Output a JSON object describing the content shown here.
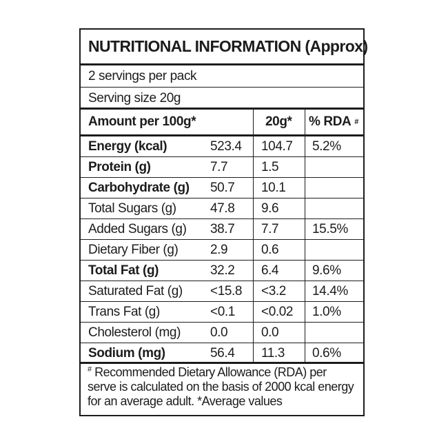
{
  "title": "NUTRITIONAL INFORMATION (Approx)",
  "servings_per_pack": "2 servings per pack",
  "serving_size": "Serving size 20g",
  "headers": {
    "amount_per_100g": "Amount per 100g*",
    "per_serving": "20g*",
    "rda": "% RDA",
    "rda_mark": "#"
  },
  "rows": [
    {
      "name": "Energy (kcal)",
      "per100": "523.4",
      "per20": "104.7",
      "rda": "5.2%"
    },
    {
      "name": "Protein (g)",
      "per100": "7.7",
      "per20": "1.5",
      "rda": ""
    },
    {
      "name": "Carbohydrate (g)",
      "per100": "50.7",
      "per20": "10.1",
      "rda": ""
    },
    {
      "name": "Total Sugars (g)",
      "per100": "47.8",
      "per20": "9.6",
      "rda": ""
    },
    {
      "name": "Added Sugars (g)",
      "per100": "38.7",
      "per20": "7.7",
      "rda": "15.5%"
    },
    {
      "name": "Dietary Fiber (g)",
      "per100": "2.9",
      "per20": "0.6",
      "rda": ""
    },
    {
      "name": "Total Fat (g)",
      "per100": "32.2",
      "per20": "6.4",
      "rda": "9.6%"
    },
    {
      "name": "Saturated Fat (g)",
      "per100": "<15.8",
      "per20": "<3.2",
      "rda": "14.4%"
    },
    {
      "name": "Trans Fat (g)",
      "per100": "<0.1",
      "per20": "<0.02",
      "rda": "1.0%"
    },
    {
      "name": "Cholesterol (mg)",
      "per100": "0.0",
      "per20": "0.0",
      "rda": ""
    },
    {
      "name": "Sodium (mg)",
      "per100": "56.4",
      "per20": "11.3",
      "rda": "0.6%"
    }
  ],
  "footnote": {
    "mark": "#",
    "text": "Recommended Dietary Allowance (RDA) per serve is calculated on the basis of 2000 kcal energy for an average adult. *Average values"
  }
}
